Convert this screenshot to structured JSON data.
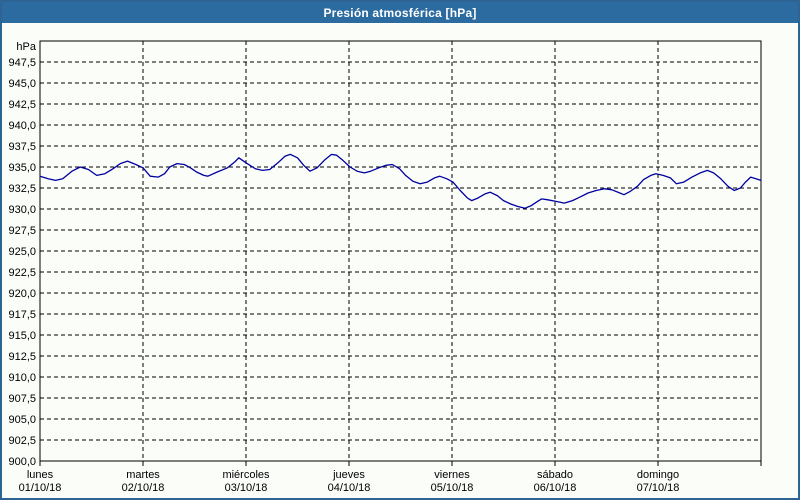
{
  "window": {
    "title": "Presión atmosférica [hPa]"
  },
  "colors": {
    "titlebar_bg": "#2b6ba0",
    "title_text": "#ffffff",
    "window_border": "#2d6493",
    "background": "#fbfdf9",
    "grid": "#000000",
    "frame": "#000000",
    "label": "#000000",
    "series": "#0000a0"
  },
  "chart_data": {
    "type": "line",
    "title": "Presión atmosférica [hPa]",
    "legend": "none",
    "grid": "dashed",
    "y_axis": {
      "unit_label": "hPa",
      "min": 900,
      "max": 950,
      "tick_start": 900,
      "tick_step": 2.5,
      "decimal_separator": ",",
      "tick_labels": [
        "900,0",
        "902,5",
        "905,0",
        "907,5",
        "910,0",
        "912,5",
        "915,0",
        "917,5",
        "920,0",
        "922,5",
        "925,0",
        "927,5",
        "930,0",
        "932,5",
        "935,0",
        "937,5",
        "940,0",
        "942,5",
        "945,0",
        "947,5"
      ]
    },
    "x_axis": {
      "range_days": 7,
      "days": [
        {
          "name": "lunes",
          "date": "01/10/18"
        },
        {
          "name": "martes",
          "date": "02/10/18"
        },
        {
          "name": "miércoles",
          "date": "03/10/18"
        },
        {
          "name": "jueves",
          "date": "04/10/18"
        },
        {
          "name": "viernes",
          "date": "05/10/18"
        },
        {
          "name": "sábado",
          "date": "06/10/18"
        },
        {
          "name": "domingo",
          "date": "07/10/18"
        }
      ]
    },
    "series": [
      {
        "name": "Presión atmosférica",
        "unit": "hPa",
        "color": "#0000a0",
        "points": [
          [
            0.0,
            933.9
          ],
          [
            0.08,
            933.6
          ],
          [
            0.15,
            933.4
          ],
          [
            0.22,
            933.6
          ],
          [
            0.31,
            934.5
          ],
          [
            0.39,
            935.0
          ],
          [
            0.47,
            934.7
          ],
          [
            0.55,
            934.0
          ],
          [
            0.63,
            934.2
          ],
          [
            0.71,
            934.8
          ],
          [
            0.78,
            935.4
          ],
          [
            0.85,
            935.7
          ],
          [
            0.93,
            935.3
          ],
          [
            1.0,
            934.9
          ],
          [
            1.07,
            933.9
          ],
          [
            1.15,
            933.8
          ],
          [
            1.21,
            934.2
          ],
          [
            1.26,
            935.0
          ],
          [
            1.33,
            935.4
          ],
          [
            1.4,
            935.3
          ],
          [
            1.46,
            934.9
          ],
          [
            1.52,
            934.4
          ],
          [
            1.59,
            934.0
          ],
          [
            1.63,
            933.9
          ],
          [
            1.72,
            934.4
          ],
          [
            1.82,
            934.9
          ],
          [
            1.89,
            935.6
          ],
          [
            1.93,
            936.1
          ],
          [
            2.0,
            935.5
          ],
          [
            2.09,
            934.8
          ],
          [
            2.16,
            934.6
          ],
          [
            2.23,
            934.7
          ],
          [
            2.31,
            935.5
          ],
          [
            2.38,
            936.3
          ],
          [
            2.43,
            936.5
          ],
          [
            2.5,
            936.1
          ],
          [
            2.56,
            935.2
          ],
          [
            2.62,
            934.5
          ],
          [
            2.69,
            934.9
          ],
          [
            2.76,
            935.8
          ],
          [
            2.83,
            936.5
          ],
          [
            2.88,
            936.4
          ],
          [
            2.94,
            935.8
          ],
          [
            3.01,
            935.0
          ],
          [
            3.08,
            934.5
          ],
          [
            3.15,
            934.3
          ],
          [
            3.21,
            934.5
          ],
          [
            3.29,
            934.9
          ],
          [
            3.36,
            935.2
          ],
          [
            3.42,
            935.3
          ],
          [
            3.49,
            934.8
          ],
          [
            3.55,
            934.0
          ],
          [
            3.62,
            933.3
          ],
          [
            3.69,
            933.0
          ],
          [
            3.76,
            933.2
          ],
          [
            3.83,
            933.7
          ],
          [
            3.88,
            933.9
          ],
          [
            3.95,
            933.6
          ],
          [
            4.01,
            933.2
          ],
          [
            4.08,
            932.2
          ],
          [
            4.15,
            931.3
          ],
          [
            4.19,
            931.0
          ],
          [
            4.25,
            931.3
          ],
          [
            4.32,
            931.8
          ],
          [
            4.37,
            932.0
          ],
          [
            4.44,
            931.6
          ],
          [
            4.5,
            931.0
          ],
          [
            4.57,
            930.6
          ],
          [
            4.64,
            930.3
          ],
          [
            4.71,
            930.1
          ],
          [
            4.77,
            930.4
          ],
          [
            4.83,
            930.9
          ],
          [
            4.87,
            931.2
          ],
          [
            4.93,
            931.1
          ],
          [
            5.01,
            930.9
          ],
          [
            5.09,
            930.7
          ],
          [
            5.17,
            931.0
          ],
          [
            5.24,
            931.4
          ],
          [
            5.32,
            931.9
          ],
          [
            5.4,
            932.2
          ],
          [
            5.48,
            932.4
          ],
          [
            5.55,
            932.3
          ],
          [
            5.63,
            931.9
          ],
          [
            5.67,
            931.7
          ],
          [
            5.73,
            932.1
          ],
          [
            5.8,
            932.7
          ],
          [
            5.86,
            933.5
          ],
          [
            5.93,
            934.0
          ],
          [
            5.98,
            934.2
          ],
          [
            6.05,
            934.0
          ],
          [
            6.12,
            933.7
          ],
          [
            6.18,
            933.0
          ],
          [
            6.25,
            933.2
          ],
          [
            6.33,
            933.8
          ],
          [
            6.41,
            934.3
          ],
          [
            6.48,
            934.6
          ],
          [
            6.54,
            934.3
          ],
          [
            6.61,
            933.6
          ],
          [
            6.68,
            932.7
          ],
          [
            6.74,
            932.2
          ],
          [
            6.8,
            932.5
          ],
          [
            6.85,
            933.2
          ],
          [
            6.9,
            933.8
          ],
          [
            6.95,
            933.6
          ],
          [
            7.0,
            933.4
          ]
        ]
      }
    ]
  }
}
